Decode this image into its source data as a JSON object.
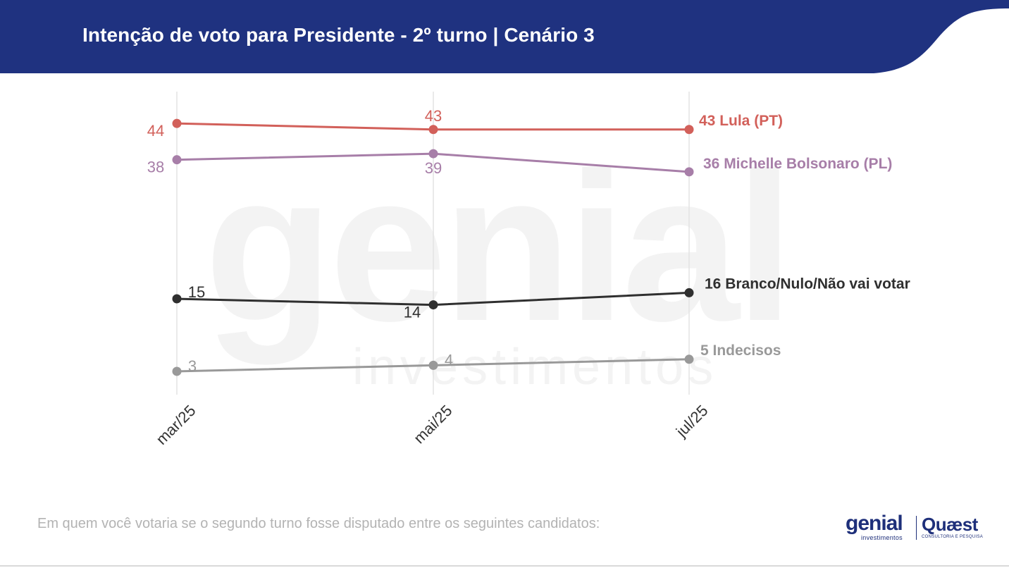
{
  "header": {
    "title": "Intenção de voto para Presidente - 2º turno | Cenário 3",
    "bg_color": "#1f3280"
  },
  "watermark": {
    "big": "genial",
    "small": "investimentos"
  },
  "chart_data": {
    "type": "line",
    "title": "",
    "xlabel": "",
    "ylabel": "",
    "categories": [
      "mar/25",
      "mai/25",
      "jul/25"
    ],
    "ylim": [
      0,
      48
    ],
    "grid": "vertical",
    "legend": "end-of-line labels",
    "series": [
      {
        "name": "Lula (PT)",
        "end_label": "43 Lula (PT)",
        "values": [
          44,
          43,
          43
        ],
        "color": "#d2605a"
      },
      {
        "name": "Michelle Bolsonaro (PL)",
        "end_label": "36 Michelle Bolsonaro (PL)",
        "values": [
          38,
          39,
          36
        ],
        "color": "#a77ea8"
      },
      {
        "name": "Branco/Nulo/Não vai votar",
        "end_label": "16 Branco/Nulo/Não vai votar",
        "values": [
          15,
          14,
          16
        ],
        "color": "#2f2f2f"
      },
      {
        "name": "Indecisos",
        "end_label": "5 Indecisos",
        "values": [
          3,
          4,
          5
        ],
        "color": "#999999"
      }
    ]
  },
  "footer": {
    "note": "Em quem você votaria se o segundo turno fosse disputado entre os seguintes candidatos:"
  },
  "logos": {
    "genial": "genial",
    "genial_sub": "investimentos",
    "quaest": "Quæst",
    "quaest_sub": "CONSULTORIA E PESQUISA"
  }
}
